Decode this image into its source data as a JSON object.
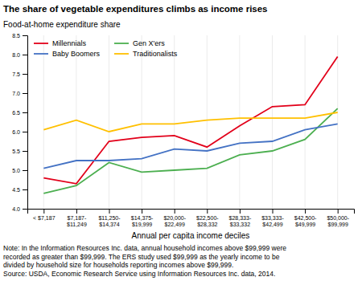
{
  "chart_data": {
    "type": "line",
    "title": "The share of vegetable expenditures climbs as income rises",
    "ylabel": "Food-at-home expenditure share",
    "xlabel": "Annual per capita income deciles",
    "categories": [
      "< $7,187",
      "$7,187-\n$11,249",
      "$11,250-\n$14,374",
      "$14,375-\n$19,999",
      "$20,000-\n$22,499",
      "$22,500-\n$28,332",
      "$28,333-\n$33,332",
      "$33,333-\n$42,499",
      "$42,500-\n$49,999",
      "$50,000-\n$99,999"
    ],
    "series": [
      {
        "name": "Millennials",
        "color": "#e2001a",
        "values": [
          4.8,
          4.65,
          5.75,
          5.85,
          5.9,
          5.6,
          6.15,
          6.65,
          6.7,
          7.95
        ]
      },
      {
        "name": "Gen X'ers",
        "color": "#4caf50",
        "values": [
          4.4,
          4.6,
          5.2,
          4.95,
          5.0,
          5.05,
          5.4,
          5.5,
          5.8,
          6.6
        ]
      },
      {
        "name": "Baby Boomers",
        "color": "#4472c4",
        "values": [
          5.05,
          5.25,
          5.25,
          5.3,
          5.55,
          5.5,
          5.7,
          5.75,
          6.05,
          6.2
        ]
      },
      {
        "name": "Traditionalists",
        "color": "#ffc000",
        "values": [
          6.05,
          6.3,
          6.0,
          6.2,
          6.2,
          6.3,
          6.35,
          6.35,
          6.35,
          6.5
        ]
      }
    ],
    "ylim": [
      4.0,
      8.5
    ],
    "yticks": [
      {
        "value": 4.0,
        "label": "4.0"
      },
      4.5,
      {
        "value": 5.0,
        "label": "5.0"
      },
      5.5,
      {
        "value": 6.0,
        "label": "6.0"
      },
      6.5,
      {
        "value": 7.0,
        "label": "7.0"
      },
      7.5,
      {
        "value": 8.0,
        "label": "8.0"
      },
      8.5
    ],
    "grid": "x",
    "legend": "upper left",
    "annotations": [
      "Note: In the Information Resources Inc. data, annual household incomes above $99,999 were",
      "recorded as greater than $99,999. The ERS study used $99,999 as the yearly income to be",
      "divided by household size for households reporting incomes above $99,999.",
      "Source: USDA, Economic Research Service using Information Resources Inc. data, 2014."
    ]
  }
}
